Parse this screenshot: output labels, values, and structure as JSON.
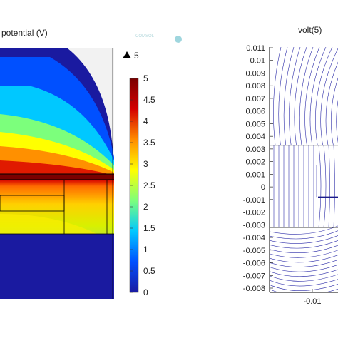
{
  "chart_data": [
    {
      "type": "heatmap",
      "title": "Electric potential (V)",
      "title_visible": "potential (V)",
      "max_marker": "5",
      "colorbar": {
        "ticks": [
          "5",
          "4.5",
          "4",
          "3.5",
          "3",
          "2.5",
          "2",
          "1.5",
          "1",
          "0.5",
          "0"
        ],
        "range": [
          0,
          5
        ],
        "colormap": [
          "#1a1aa0",
          "#0050ff",
          "#00c8ff",
          "#7cff7c",
          "#ffff00",
          "#ff8c00",
          "#d40000",
          "#7a0000"
        ]
      }
    },
    {
      "type": "line",
      "title": "volt(5)=",
      "ylim": [
        -0.008,
        0.011
      ],
      "y_ticks": [
        "0.011",
        "0.01",
        "0.009",
        "0.008",
        "0.007",
        "0.006",
        "0.005",
        "0.004",
        "0.003",
        "0.002",
        "0.001",
        "0",
        "-0.001",
        "-0.002",
        "-0.003",
        "-0.004",
        "-0.005",
        "-0.006",
        "-0.007",
        "-0.008"
      ],
      "x_ticks": [
        "-0.01"
      ],
      "line_color": "#2c2ca8"
    }
  ]
}
